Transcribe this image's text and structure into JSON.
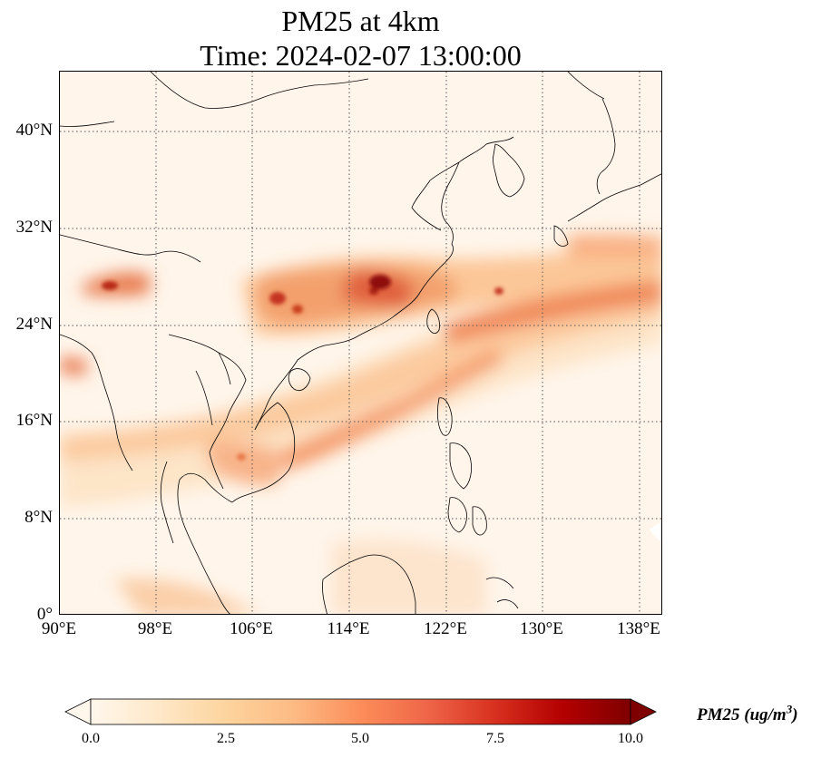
{
  "title": {
    "line1": "PM25 at 4km",
    "line2": "Time: 2024-02-07 13:00:00"
  },
  "map": {
    "projection": "PlateCarree",
    "lon_range": [
      90,
      139
    ],
    "lat_range": [
      0,
      45
    ],
    "gridlines": "dotted",
    "lat_ticks": [
      "40°N",
      "32°N",
      "24°N",
      "16°N",
      "8°N",
      "0°"
    ],
    "lon_ticks": [
      "90°E",
      "98°E",
      "106°E",
      "114°E",
      "122°E",
      "130°E",
      "138°E"
    ],
    "colormap": "OrRd",
    "colors": {
      "low": "#fff7ec",
      "mid": "#fdbb84",
      "high": "#7f0000"
    }
  },
  "colorbar": {
    "ticks": [
      "0.0",
      "2.5",
      "5.0",
      "7.5",
      "10.0"
    ],
    "label": "PM25 (ug/m^3)",
    "range": [
      0,
      10
    ],
    "extend": "both"
  }
}
